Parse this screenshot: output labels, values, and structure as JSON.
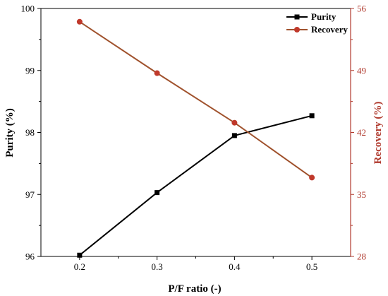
{
  "chart_data": {
    "type": "line",
    "title": "",
    "xlabel": "P/F ratio (-)",
    "ylabel": "Purity (%)",
    "y2label": "Recovery (%)",
    "x": [
      0.2,
      0.3,
      0.4,
      0.5
    ],
    "xlim": [
      0.15,
      0.55
    ],
    "xticks": [
      "0.2",
      "0.3",
      "0.4",
      "0.5"
    ],
    "ylim": [
      96,
      100
    ],
    "yticks": [
      "96",
      "97",
      "98",
      "99",
      "100"
    ],
    "y2lim": [
      28,
      56
    ],
    "y2ticks": [
      "28",
      "35",
      "42",
      "49",
      "56"
    ],
    "grid": false,
    "legend_position": "top-right",
    "series": [
      {
        "name": "Purity",
        "axis": "left",
        "color": "#000000",
        "marker": "square",
        "values": [
          96.02,
          97.03,
          97.95,
          98.27
        ]
      },
      {
        "name": "Recovery",
        "axis": "right",
        "color": "#a0522d",
        "marker_color": "#c0392b",
        "marker": "circle",
        "values": [
          54.5,
          48.7,
          43.1,
          36.9
        ]
      }
    ],
    "axis_colors": {
      "left": "#000000",
      "right": "#b03a2e"
    }
  }
}
